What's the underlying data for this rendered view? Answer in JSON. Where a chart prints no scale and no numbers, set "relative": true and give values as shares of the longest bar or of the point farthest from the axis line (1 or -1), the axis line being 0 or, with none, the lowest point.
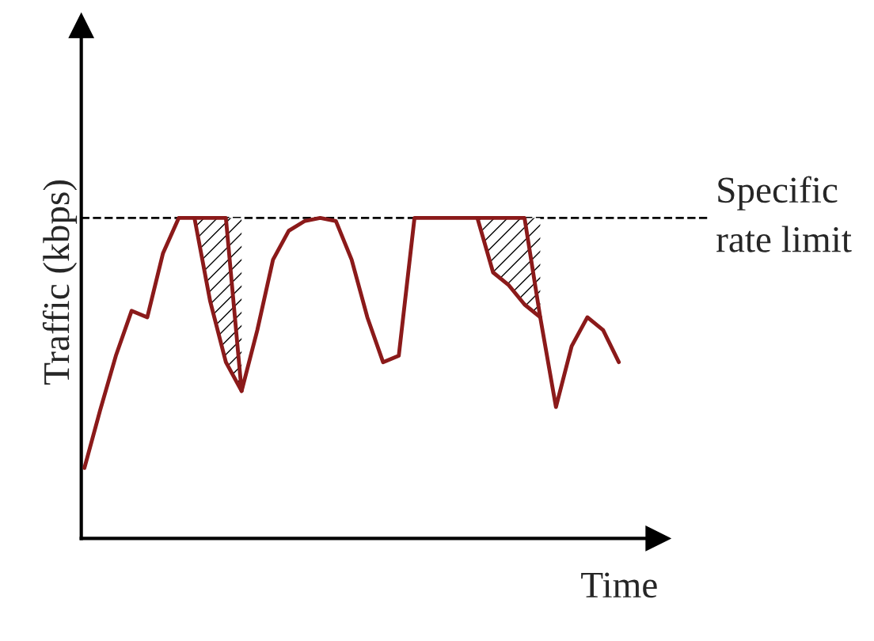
{
  "chart_data": {
    "type": "line",
    "relative": true,
    "xlabel": "Time",
    "ylabel": "Traffic (kbps)",
    "categories": [
      null,
      null,
      null,
      null,
      null,
      null,
      null,
      null,
      null,
      null,
      null,
      null,
      null,
      null,
      null,
      null,
      null,
      null,
      null,
      null,
      null,
      null,
      null,
      null,
      null,
      null,
      null,
      null,
      null,
      null,
      null,
      null,
      null,
      null,
      null
    ],
    "series": [
      {
        "color": "#8b1a1a",
        "values": [
          0.22,
          0.4,
          0.57,
          0.71,
          0.69,
          0.89,
          1,
          1,
          1,
          1,
          0.46,
          0.65,
          0.87,
          0.96,
          0.99,
          1,
          0.99,
          0.87,
          0.69,
          0.55,
          0.57,
          1,
          1,
          1,
          1,
          1,
          1,
          1,
          1,
          0.69,
          0.41,
          0.6,
          0.69,
          0.65,
          0.55
        ]
      },
      {
        "color": "#8b1a1a",
        "values": [
          null,
          null,
          null,
          null,
          null,
          null,
          null,
          1,
          0.74,
          0.55,
          0.46,
          null,
          null,
          null,
          null,
          null,
          null,
          null,
          null,
          null,
          null,
          null,
          null,
          null,
          null,
          1,
          0.83,
          0.79,
          0.73,
          0.69,
          null,
          null,
          null,
          null,
          null
        ],
        "lower": [
          null,
          null,
          null,
          null,
          null,
          null,
          null,
          1,
          0.74,
          0.55,
          0.46,
          null,
          null,
          null,
          null,
          null,
          null,
          null,
          null,
          null,
          null,
          null,
          null,
          null,
          null,
          1,
          0.83,
          0.79,
          0.73,
          0.69,
          null,
          null,
          null,
          null,
          null
        ],
        "upper": [
          null,
          null,
          null,
          null,
          null,
          null,
          null,
          1,
          1,
          1,
          1,
          null,
          null,
          null,
          null,
          null,
          null,
          null,
          null,
          null,
          null,
          null,
          null,
          null,
          null,
          1,
          1,
          1,
          1,
          1,
          null,
          null,
          null,
          null,
          null
        ]
      }
    ],
    "ref_lines": [
      {
        "axis": "y",
        "value": 1,
        "label": "Specific rate limit",
        "color": "#000000",
        "line_style": "dashed"
      }
    ],
    "legend": false,
    "marker": "none",
    "line_style": "solid"
  }
}
